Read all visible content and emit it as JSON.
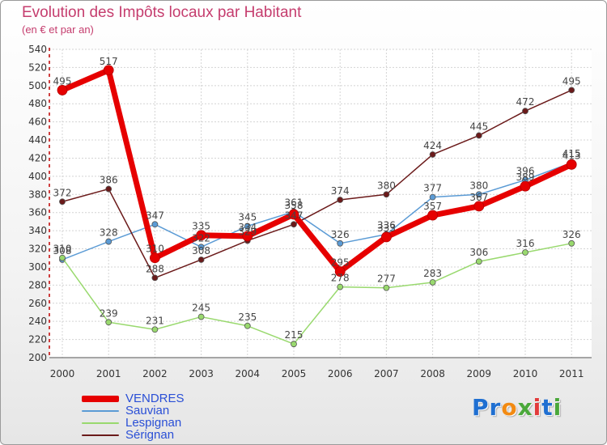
{
  "title": "Evolution des Impôts locaux par Habitant",
  "subtitle": "(en € et par an)",
  "logo": {
    "letters": [
      "P",
      "r",
      "o",
      "x",
      "i",
      "t",
      "i"
    ],
    "colors": [
      "#1f6fd1",
      "#1f6fd1",
      "#f28a12",
      "#4aa83a",
      "#e23b3b",
      "#1f6fd1",
      "#4aa83a"
    ]
  },
  "chart_data": {
    "type": "line",
    "title": "Evolution des Impôts locaux par Habitant",
    "ylabel": "(en € et par an)",
    "xlabel": "",
    "x": [
      "2000",
      "2001",
      "2002",
      "2003",
      "2004",
      "2005",
      "2006",
      "2007",
      "2008",
      "2009",
      "2010",
      "2011"
    ],
    "ylim": [
      200,
      540
    ],
    "yticks": [
      "200",
      "220",
      "240",
      "260",
      "280",
      "300",
      "320",
      "340",
      "360",
      "380",
      "400",
      "420",
      "440",
      "460",
      "480",
      "500",
      "520",
      "540"
    ],
    "grid": true,
    "legend": "bottom-left",
    "series": [
      {
        "name": "VENDRES",
        "color": "#e60000",
        "values": [
          495,
          517,
          310,
          335,
          334,
          358,
          295,
          333,
          357,
          367,
          389,
          413
        ],
        "labels": [
          "495",
          "517",
          "310",
          "335",
          "334",
          "358",
          "295",
          "333",
          "357",
          "367",
          "389",
          "413"
        ]
      },
      {
        "name": "Sauvian",
        "color": "#5b9bd5",
        "values": [
          308,
          328,
          347,
          322,
          345,
          361,
          326,
          336,
          377,
          380,
          396,
          415
        ],
        "labels": [
          "308",
          "328",
          "347",
          "322",
          "345",
          "361",
          "326",
          "336",
          "377",
          "380",
          "396",
          "415"
        ]
      },
      {
        "name": "Lespignan",
        "color": "#99d96e",
        "values": [
          310,
          239,
          231,
          245,
          235,
          215,
          278,
          277,
          283,
          306,
          316,
          326
        ],
        "labels": [
          "310",
          "239",
          "231",
          "245",
          "235",
          "215",
          "278",
          "277",
          "283",
          "306",
          "316",
          "326"
        ]
      },
      {
        "name": "Sérignan",
        "color": "#6b1a1a",
        "values": [
          372,
          386,
          288,
          308,
          329,
          347,
          374,
          380,
          424,
          445,
          472,
          495
        ],
        "labels": [
          "372",
          "386",
          "288",
          "308",
          "329",
          "347",
          "374",
          "380",
          "424",
          "445",
          "472",
          "495"
        ]
      }
    ]
  }
}
